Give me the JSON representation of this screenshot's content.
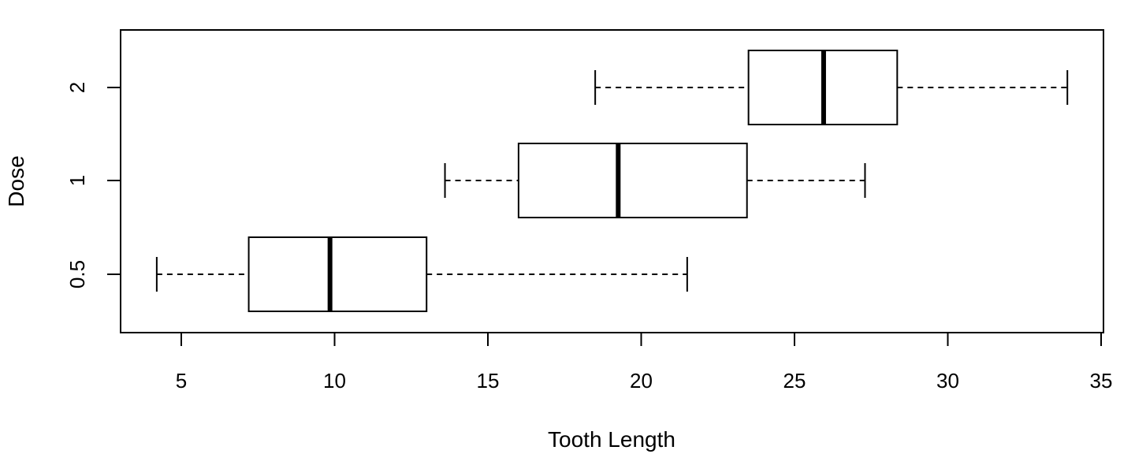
{
  "chart_data": {
    "type": "boxplot",
    "orientation": "horizontal",
    "xlabel": "Tooth Length",
    "ylabel": "Dose",
    "xlim": [
      3,
      35
    ],
    "xticks": [
      5,
      10,
      15,
      20,
      25,
      30,
      35
    ],
    "grid": false,
    "categories": [
      "0.5",
      "1",
      "2"
    ],
    "boxes": [
      {
        "label": "0.5",
        "whisker_low": 4.2,
        "q1": 7.2,
        "median": 9.85,
        "q3": 13.0,
        "whisker_high": 21.5
      },
      {
        "label": "1",
        "whisker_low": 13.6,
        "q1": 16.0,
        "median": 19.25,
        "q3": 23.45,
        "whisker_high": 27.3
      },
      {
        "label": "2",
        "whisker_low": 18.5,
        "q1": 23.5,
        "median": 25.95,
        "q3": 28.35,
        "whisker_high": 33.9
      }
    ]
  }
}
